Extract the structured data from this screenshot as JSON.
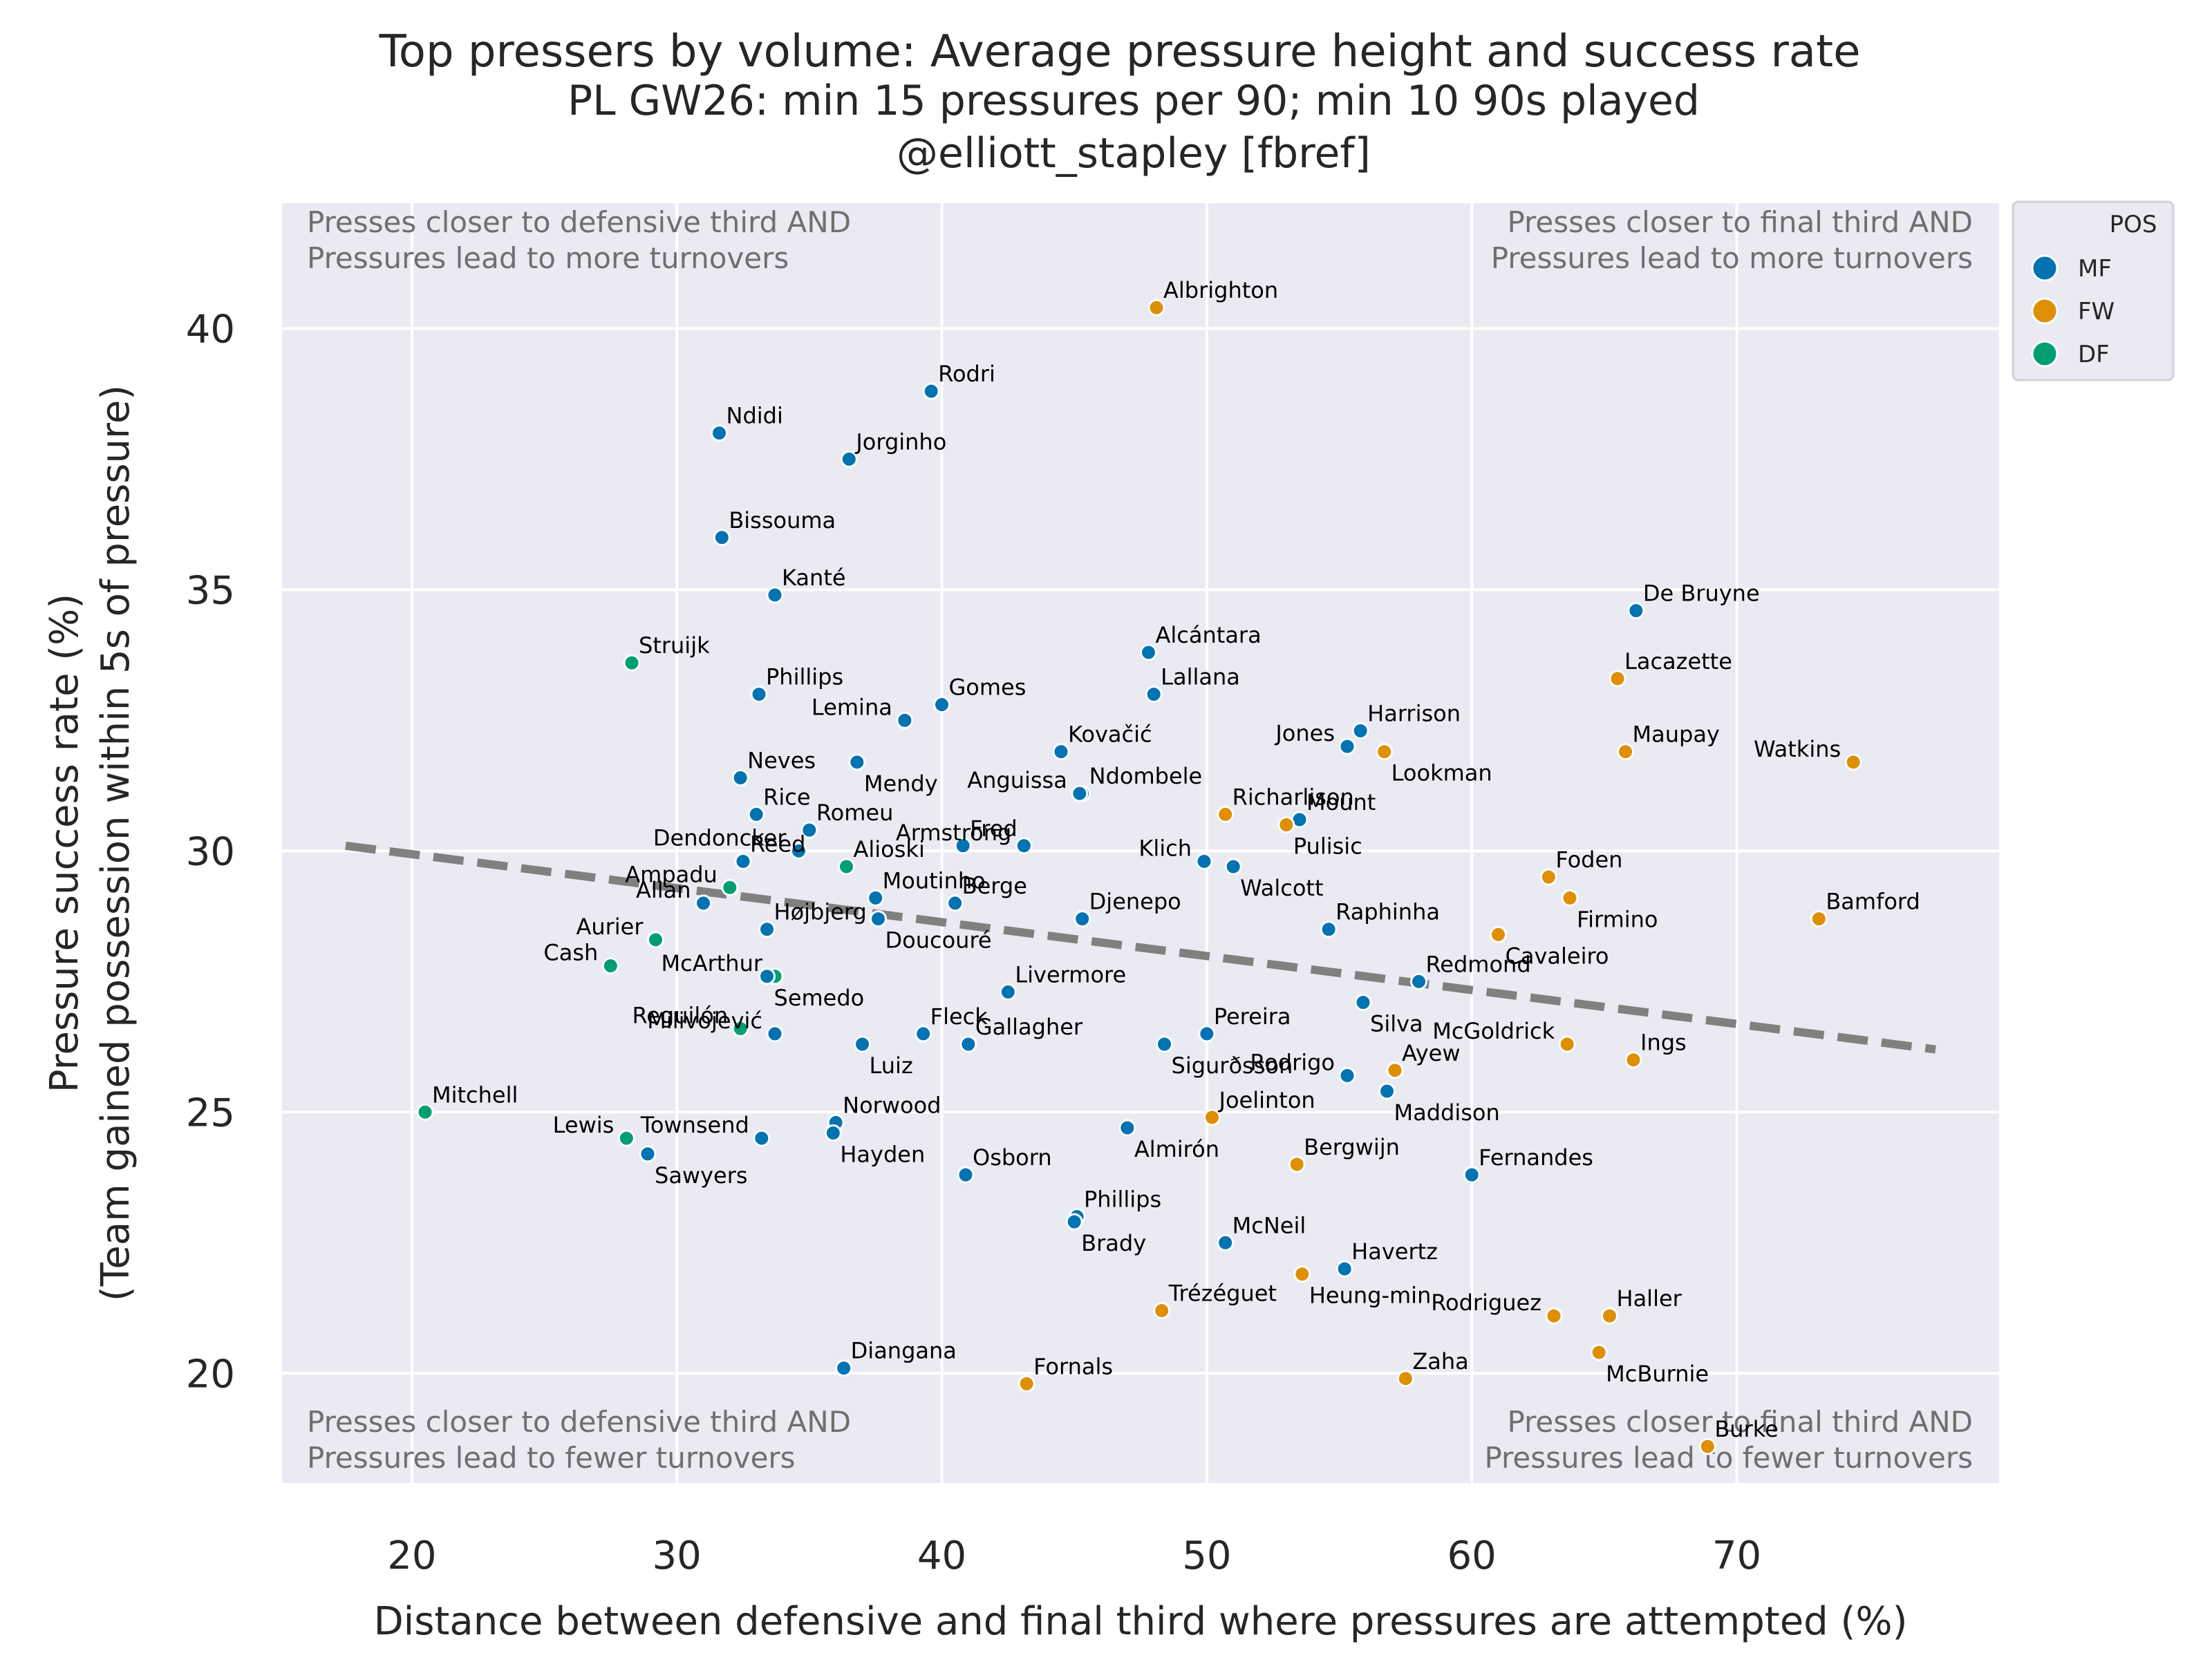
{
  "chart_data": {
    "type": "scatter",
    "title": "Top pressers by volume: Average pressure height and success rate",
    "subtitle_line1": "PL GW26: min 15 pressures per 90; min 10 90s played",
    "subtitle_line2": "@elliott_stapley [fbref]",
    "xlabel": "Distance between defensive and final third where pressures are attempted (%)",
    "ylabel_line1": "Pressure success rate (%)",
    "ylabel_line2": "(Team gained possession within 5s of pressure)",
    "xlim": [
      15.1,
      79.9
    ],
    "ylim": [
      17.9,
      42.4
    ],
    "xticks": [
      20,
      30,
      40,
      50,
      60,
      70
    ],
    "yticks": [
      20,
      25,
      30,
      35,
      40
    ],
    "grid": true,
    "legend": {
      "title": "POS",
      "placement": "outside-top-right",
      "entries": [
        {
          "label": "MF",
          "color": "#0173b2"
        },
        {
          "label": "FW",
          "color": "#de8f05"
        },
        {
          "label": "DF",
          "color": "#029e73"
        }
      ]
    },
    "quadrant_notes": {
      "top_left": [
        "Presses closer to defensive third AND",
        "Pressures lead to more turnovers"
      ],
      "top_right": [
        "Presses closer to final third AND",
        "Pressures lead to more turnovers"
      ],
      "bottom_left": [
        "Presses closer to defensive third AND",
        "Pressures lead to fewer turnovers"
      ],
      "bottom_right": [
        "Presses closer to final third AND",
        "Pressures lead to fewer turnovers"
      ]
    },
    "trend_line": {
      "x": [
        17.5,
        77.5
      ],
      "y": [
        30.1,
        26.2
      ],
      "style": "dashed",
      "color": "#808080"
    },
    "points": [
      {
        "name": "Albrighton",
        "x": 48.1,
        "y": 40.4,
        "pos": "FW"
      },
      {
        "name": "Rodri",
        "x": 39.6,
        "y": 38.8,
        "pos": "MF"
      },
      {
        "name": "Ndidi",
        "x": 31.6,
        "y": 38.0,
        "pos": "MF"
      },
      {
        "name": "Jorginho",
        "x": 36.5,
        "y": 37.5,
        "pos": "MF"
      },
      {
        "name": "Bissouma",
        "x": 31.7,
        "y": 36.0,
        "pos": "MF"
      },
      {
        "name": "Kanté",
        "x": 33.7,
        "y": 34.9,
        "pos": "MF"
      },
      {
        "name": "De Bruyne",
        "x": 66.2,
        "y": 34.6,
        "pos": "MF"
      },
      {
        "name": "Alcántara",
        "x": 47.8,
        "y": 33.8,
        "pos": "MF"
      },
      {
        "name": "Struijk",
        "x": 28.3,
        "y": 33.6,
        "pos": "DF"
      },
      {
        "name": "Lacazette",
        "x": 65.5,
        "y": 33.3,
        "pos": "FW"
      },
      {
        "name": "Phillips",
        "x": 33.1,
        "y": 33.0,
        "pos": "MF"
      },
      {
        "name": "Lallana",
        "x": 48.0,
        "y": 33.0,
        "pos": "MF"
      },
      {
        "name": "Gomes",
        "x": 40.0,
        "y": 32.8,
        "pos": "MF"
      },
      {
        "name": "Lemina",
        "x": 38.6,
        "y": 32.5,
        "pos": "MF"
      },
      {
        "name": "Harrison",
        "x": 55.8,
        "y": 32.3,
        "pos": "MF"
      },
      {
        "name": "Jones",
        "x": 55.3,
        "y": 32.0,
        "pos": "MF"
      },
      {
        "name": "Lookman",
        "x": 56.7,
        "y": 31.9,
        "pos": "FW"
      },
      {
        "name": "Maupay",
        "x": 65.8,
        "y": 31.9,
        "pos": "FW"
      },
      {
        "name": "Kovačić",
        "x": 44.5,
        "y": 31.9,
        "pos": "MF"
      },
      {
        "name": "Watkins",
        "x": 74.4,
        "y": 31.7,
        "pos": "FW"
      },
      {
        "name": "Mendy",
        "x": 36.8,
        "y": 31.7,
        "pos": "MF"
      },
      {
        "name": "Neves",
        "x": 32.4,
        "y": 31.4,
        "pos": "MF"
      },
      {
        "name": "Ndombele",
        "x": 45.3,
        "y": 31.1,
        "pos": "MF"
      },
      {
        "name": "Anguissa",
        "x": 45.2,
        "y": 31.1,
        "pos": "MF"
      },
      {
        "name": "Rice",
        "x": 33.0,
        "y": 30.7,
        "pos": "MF"
      },
      {
        "name": "Mount",
        "x": 53.5,
        "y": 30.6,
        "pos": "MF"
      },
      {
        "name": "Richarlison",
        "x": 50.7,
        "y": 30.7,
        "pos": "FW"
      },
      {
        "name": "Pulisic",
        "x": 53.0,
        "y": 30.5,
        "pos": "FW"
      },
      {
        "name": "Romeu",
        "x": 35.0,
        "y": 30.4,
        "pos": "MF"
      },
      {
        "name": "Dendoncker",
        "x": 34.6,
        "y": 30.0,
        "pos": "MF"
      },
      {
        "name": "Fred",
        "x": 40.8,
        "y": 30.1,
        "pos": "MF"
      },
      {
        "name": "Armstrong",
        "x": 43.1,
        "y": 30.1,
        "pos": "MF"
      },
      {
        "name": "Reed",
        "x": 32.5,
        "y": 29.8,
        "pos": "MF"
      },
      {
        "name": "Alioski",
        "x": 36.4,
        "y": 29.7,
        "pos": "DF"
      },
      {
        "name": "Klich",
        "x": 49.9,
        "y": 29.8,
        "pos": "MF"
      },
      {
        "name": "Walcott",
        "x": 51.0,
        "y": 29.7,
        "pos": "MF"
      },
      {
        "name": "Foden",
        "x": 62.9,
        "y": 29.5,
        "pos": "FW"
      },
      {
        "name": "Ampadu",
        "x": 32.0,
        "y": 29.3,
        "pos": "DF"
      },
      {
        "name": "Allan",
        "x": 31.0,
        "y": 29.0,
        "pos": "MF"
      },
      {
        "name": "Moutinho",
        "x": 37.5,
        "y": 29.1,
        "pos": "MF"
      },
      {
        "name": "Berge",
        "x": 40.5,
        "y": 29.0,
        "pos": "MF"
      },
      {
        "name": "Firmino",
        "x": 63.7,
        "y": 29.1,
        "pos": "FW"
      },
      {
        "name": "Bamford",
        "x": 73.1,
        "y": 28.7,
        "pos": "FW"
      },
      {
        "name": "Djenepo",
        "x": 45.3,
        "y": 28.7,
        "pos": "MF"
      },
      {
        "name": "Raphinha",
        "x": 54.6,
        "y": 28.5,
        "pos": "MF"
      },
      {
        "name": "Doucouré",
        "x": 37.6,
        "y": 28.7,
        "pos": "MF"
      },
      {
        "name": "Aurier",
        "x": 29.2,
        "y": 28.3,
        "pos": "DF"
      },
      {
        "name": "Højbjerg",
        "x": 33.4,
        "y": 28.5,
        "pos": "MF"
      },
      {
        "name": "Cavaleiro",
        "x": 61.0,
        "y": 28.4,
        "pos": "FW"
      },
      {
        "name": "Cash",
        "x": 27.5,
        "y": 27.8,
        "pos": "DF"
      },
      {
        "name": "McArthur",
        "x": 33.7,
        "y": 27.6,
        "pos": "DF"
      },
      {
        "name": "Semedo",
        "x": 33.4,
        "y": 27.6,
        "pos": "MF"
      },
      {
        "name": "Redmond",
        "x": 58.0,
        "y": 27.5,
        "pos": "MF"
      },
      {
        "name": "Livermore",
        "x": 42.5,
        "y": 27.3,
        "pos": "MF"
      },
      {
        "name": "Silva",
        "x": 55.9,
        "y": 27.1,
        "pos": "MF"
      },
      {
        "name": "Reguilón",
        "x": 32.4,
        "y": 26.6,
        "pos": "DF"
      },
      {
        "name": "Milivojević",
        "x": 33.7,
        "y": 26.5,
        "pos": "MF"
      },
      {
        "name": "Fleck",
        "x": 39.3,
        "y": 26.5,
        "pos": "MF"
      },
      {
        "name": "Pereira",
        "x": 50.0,
        "y": 26.5,
        "pos": "MF"
      },
      {
        "name": "McGoldrick",
        "x": 63.6,
        "y": 26.3,
        "pos": "FW"
      },
      {
        "name": "Gallagher",
        "x": 41.0,
        "y": 26.3,
        "pos": "MF"
      },
      {
        "name": "Luiz",
        "x": 37.0,
        "y": 26.3,
        "pos": "MF"
      },
      {
        "name": "Sigurðsson",
        "x": 48.4,
        "y": 26.3,
        "pos": "MF"
      },
      {
        "name": "Ings",
        "x": 66.1,
        "y": 26.0,
        "pos": "FW"
      },
      {
        "name": "Ayew",
        "x": 57.1,
        "y": 25.8,
        "pos": "FW"
      },
      {
        "name": "Rodrigo",
        "x": 55.3,
        "y": 25.7,
        "pos": "MF"
      },
      {
        "name": "Maddison",
        "x": 56.8,
        "y": 25.4,
        "pos": "MF"
      },
      {
        "name": "Mitchell",
        "x": 20.5,
        "y": 25.0,
        "pos": "DF"
      },
      {
        "name": "Joelinton",
        "x": 50.2,
        "y": 24.9,
        "pos": "FW"
      },
      {
        "name": "Norwood",
        "x": 36.0,
        "y": 24.8,
        "pos": "MF"
      },
      {
        "name": "Almirón",
        "x": 47.0,
        "y": 24.7,
        "pos": "MF"
      },
      {
        "name": "Hayden",
        "x": 35.9,
        "y": 24.6,
        "pos": "MF"
      },
      {
        "name": "Townsend",
        "x": 33.2,
        "y": 24.5,
        "pos": "MF"
      },
      {
        "name": "Lewis",
        "x": 28.1,
        "y": 24.5,
        "pos": "DF"
      },
      {
        "name": "Sawyers",
        "x": 28.9,
        "y": 24.2,
        "pos": "MF"
      },
      {
        "name": "Bergwijn",
        "x": 53.4,
        "y": 24.0,
        "pos": "FW"
      },
      {
        "name": "Osborn",
        "x": 40.9,
        "y": 23.8,
        "pos": "MF"
      },
      {
        "name": "Fernandes",
        "x": 60.0,
        "y": 23.8,
        "pos": "MF"
      },
      {
        "name": "Phillips",
        "x": 45.1,
        "y": 23.0,
        "pos": "MF"
      },
      {
        "name": "Brady",
        "x": 45.0,
        "y": 22.9,
        "pos": "MF"
      },
      {
        "name": "McNeil",
        "x": 50.7,
        "y": 22.5,
        "pos": "MF"
      },
      {
        "name": "Havertz",
        "x": 55.2,
        "y": 22.0,
        "pos": "MF"
      },
      {
        "name": "Heung-min",
        "x": 53.6,
        "y": 21.9,
        "pos": "FW"
      },
      {
        "name": "Trézéguet",
        "x": 48.3,
        "y": 21.2,
        "pos": "FW"
      },
      {
        "name": "Rodriguez",
        "x": 63.1,
        "y": 21.1,
        "pos": "FW"
      },
      {
        "name": "Haller",
        "x": 65.2,
        "y": 21.1,
        "pos": "FW"
      },
      {
        "name": "McBurnie",
        "x": 64.8,
        "y": 20.4,
        "pos": "FW"
      },
      {
        "name": "Diangana",
        "x": 36.3,
        "y": 20.1,
        "pos": "MF"
      },
      {
        "name": "Zaha",
        "x": 57.5,
        "y": 19.9,
        "pos": "FW"
      },
      {
        "name": "Fornals",
        "x": 43.2,
        "y": 19.8,
        "pos": "FW"
      },
      {
        "name": "Burke",
        "x": 68.9,
        "y": 18.6,
        "pos": "FW"
      }
    ]
  }
}
